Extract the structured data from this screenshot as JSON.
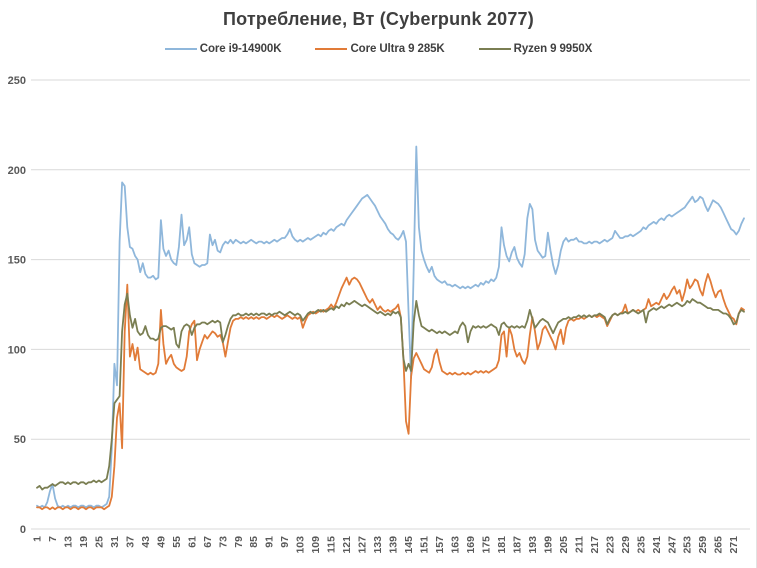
{
  "chart_data": {
    "type": "line",
    "title": "Потребление, Вт (Cyberpunk 2077)",
    "xlabel": "",
    "ylabel": "",
    "ylim": [
      0,
      250
    ],
    "y_ticks": [
      0,
      50,
      100,
      150,
      200,
      250
    ],
    "x_range": [
      1,
      275
    ],
    "grid": "horizontal",
    "legend_position": "top",
    "gridline_color": "#d9d9d9",
    "x_tick_labels": [
      "1",
      "7",
      "13",
      "19",
      "25",
      "31",
      "37",
      "43",
      "49",
      "55",
      "61",
      "67",
      "73",
      "79",
      "85",
      "91",
      "97",
      "103",
      "109",
      "115",
      "121",
      "127",
      "133",
      "139",
      "145",
      "151",
      "157",
      "163",
      "169",
      "175",
      "181",
      "187",
      "193",
      "199",
      "205",
      "211",
      "217",
      "223",
      "229",
      "235",
      "241",
      "247",
      "253",
      "259",
      "265",
      "271"
    ],
    "series": [
      {
        "name": "Core i9-14900K",
        "color": "#8fb7db",
        "values": [
          13,
          12,
          13,
          12,
          15,
          21,
          25,
          17,
          13,
          12,
          13,
          12,
          13,
          12,
          13,
          13,
          12,
          13,
          13,
          12,
          13,
          13,
          12,
          13,
          13,
          12,
          13,
          14,
          18,
          45,
          92,
          80,
          160,
          193,
          191,
          168,
          157,
          156,
          152,
          150,
          143,
          148,
          142,
          140,
          140,
          141,
          139,
          140,
          172,
          156,
          152,
          155,
          150,
          148,
          147,
          157,
          175,
          158,
          161,
          168,
          153,
          148,
          147,
          146,
          147,
          147,
          148,
          164,
          158,
          161,
          155,
          154,
          158,
          160,
          159,
          161,
          159,
          161,
          160,
          159,
          160,
          159,
          160,
          161,
          160,
          159,
          160,
          160,
          159,
          160,
          159,
          160,
          161,
          160,
          161,
          162,
          162,
          164,
          167,
          163,
          161,
          160,
          161,
          160,
          161,
          162,
          161,
          162,
          163,
          164,
          163,
          165,
          164,
          166,
          167,
          166,
          168,
          169,
          170,
          169,
          172,
          174,
          176,
          178,
          180,
          182,
          184,
          185,
          186,
          184,
          182,
          180,
          177,
          174,
          172,
          170,
          167,
          165,
          164,
          162,
          161,
          163,
          166,
          160,
          120,
          84,
          145,
          213,
          168,
          155,
          150,
          146,
          143,
          146,
          141,
          139,
          138,
          137,
          138,
          136,
          136,
          135,
          136,
          135,
          134,
          135,
          134,
          135,
          134,
          135,
          136,
          135,
          137,
          136,
          138,
          137,
          139,
          138,
          140,
          146,
          168,
          158,
          152,
          149,
          154,
          157,
          151,
          148,
          146,
          153,
          173,
          181,
          178,
          161,
          155,
          153,
          151,
          152,
          165,
          155,
          147,
          142,
          147,
          155,
          160,
          162,
          160,
          161,
          161,
          162,
          160,
          160,
          159,
          159,
          160,
          159,
          160,
          160,
          159,
          160,
          161,
          160,
          161,
          162,
          166,
          164,
          162,
          162,
          163,
          163,
          164,
          163,
          164,
          165,
          166,
          168,
          167,
          169,
          170,
          171,
          170,
          172,
          173,
          172,
          174,
          175,
          174,
          175,
          176,
          177,
          178,
          179,
          181,
          183,
          185,
          182,
          183,
          185,
          184,
          180,
          177,
          180,
          183,
          182,
          181,
          179,
          176,
          173,
          170,
          167,
          166,
          164,
          166,
          170,
          173
        ]
      },
      {
        "name": "Core Ultra 9 285K",
        "color": "#e17b38",
        "values": [
          12,
          12,
          11,
          12,
          12,
          11,
          12,
          11,
          12,
          12,
          11,
          12,
          12,
          11,
          12,
          12,
          11,
          12,
          12,
          11,
          12,
          12,
          11,
          12,
          12,
          12,
          11,
          12,
          13,
          18,
          35,
          62,
          70,
          45,
          110,
          136,
          96,
          103,
          94,
          101,
          89,
          88,
          87,
          86,
          87,
          86,
          87,
          92,
          122,
          103,
          92,
          95,
          97,
          92,
          90,
          89,
          88,
          89,
          96,
          110,
          114,
          116,
          94,
          100,
          104,
          108,
          106,
          108,
          110,
          109,
          107,
          108,
          104,
          96,
          104,
          112,
          116,
          117,
          117,
          118,
          117,
          118,
          117,
          118,
          117,
          118,
          117,
          118,
          118,
          117,
          118,
          119,
          118,
          119,
          118,
          117,
          118,
          119,
          118,
          117,
          118,
          117,
          118,
          112,
          116,
          119,
          120,
          121,
          120,
          121,
          122,
          121,
          122,
          123,
          125,
          123,
          126,
          130,
          134,
          137,
          140,
          136,
          139,
          140,
          139,
          137,
          134,
          131,
          128,
          126,
          128,
          125,
          122,
          124,
          122,
          121,
          122,
          121,
          122,
          123,
          125,
          118,
          95,
          60,
          53,
          85,
          95,
          98,
          95,
          92,
          89,
          88,
          87,
          90,
          97,
          100,
          93,
          88,
          87,
          86,
          87,
          86,
          87,
          86,
          86,
          87,
          86,
          87,
          86,
          87,
          88,
          87,
          88,
          87,
          88,
          87,
          88,
          89,
          90,
          94,
          108,
          110,
          96,
          112,
          108,
          100,
          96,
          98,
          94,
          92,
          96,
          108,
          118,
          110,
          100,
          104,
          111,
          113,
          110,
          107,
          104,
          100,
          107,
          111,
          103,
          112,
          116,
          117,
          116,
          117,
          117,
          118,
          117,
          118,
          119,
          118,
          119,
          118,
          119,
          118,
          117,
          113,
          116,
          119,
          120,
          119,
          120,
          121,
          125,
          120,
          121,
          122,
          121,
          122,
          121,
          122,
          123,
          128,
          124,
          125,
          126,
          125,
          128,
          131,
          128,
          130,
          133,
          135,
          131,
          133,
          127,
          132,
          139,
          134,
          136,
          139,
          138,
          133,
          130,
          137,
          142,
          138,
          133,
          129,
          132,
          133,
          128,
          124,
          121,
          118,
          117,
          114,
          120,
          123,
          122
        ]
      },
      {
        "name": "Ryzen 9 9950X",
        "color": "#7a7e52",
        "values": [
          23,
          24,
          22,
          23,
          23,
          24,
          25,
          24,
          25,
          26,
          26,
          25,
          26,
          25,
          26,
          26,
          25,
          26,
          26,
          25,
          26,
          26,
          27,
          26,
          27,
          26,
          27,
          28,
          35,
          50,
          70,
          72,
          74,
          110,
          125,
          131,
          119,
          112,
          117,
          110,
          108,
          109,
          113,
          108,
          106,
          106,
          105,
          106,
          112,
          113,
          113,
          112,
          111,
          112,
          103,
          101,
          110,
          113,
          114,
          113,
          108,
          112,
          114,
          114,
          115,
          115,
          114,
          115,
          116,
          115,
          116,
          115,
          104,
          108,
          113,
          117,
          119,
          119,
          120,
          119,
          119,
          120,
          119,
          120,
          119,
          120,
          119,
          120,
          120,
          119,
          120,
          119,
          120,
          120,
          121,
          120,
          119,
          120,
          121,
          120,
          119,
          120,
          119,
          116,
          118,
          120,
          121,
          120,
          121,
          122,
          121,
          122,
          121,
          122,
          123,
          122,
          124,
          123,
          125,
          124,
          126,
          125,
          126,
          127,
          126,
          125,
          124,
          125,
          124,
          123,
          122,
          121,
          120,
          121,
          120,
          119,
          120,
          119,
          121,
          120,
          121,
          118,
          95,
          88,
          92,
          88,
          115,
          127,
          119,
          113,
          112,
          111,
          110,
          111,
          110,
          109,
          110,
          109,
          110,
          109,
          108,
          109,
          110,
          109,
          113,
          115,
          113,
          104,
          110,
          113,
          112,
          113,
          112,
          113,
          112,
          113,
          114,
          113,
          112,
          108,
          114,
          115,
          113,
          112,
          113,
          112,
          113,
          112,
          113,
          112,
          116,
          122,
          117,
          112,
          114,
          116,
          117,
          116,
          115,
          112,
          109,
          112,
          115,
          116,
          117,
          117,
          118,
          117,
          118,
          118,
          119,
          118,
          119,
          118,
          119,
          118,
          119,
          119,
          120,
          119,
          118,
          114,
          117,
          119,
          120,
          119,
          120,
          120,
          121,
          120,
          121,
          122,
          121,
          120,
          121,
          122,
          115,
          121,
          122,
          123,
          122,
          123,
          124,
          123,
          124,
          125,
          124,
          125,
          126,
          125,
          124,
          125,
          127,
          126,
          128,
          127,
          126,
          126,
          125,
          124,
          123,
          123,
          122,
          122,
          122,
          121,
          120,
          120,
          119,
          117,
          114,
          115,
          120,
          122,
          121
        ]
      }
    ]
  }
}
